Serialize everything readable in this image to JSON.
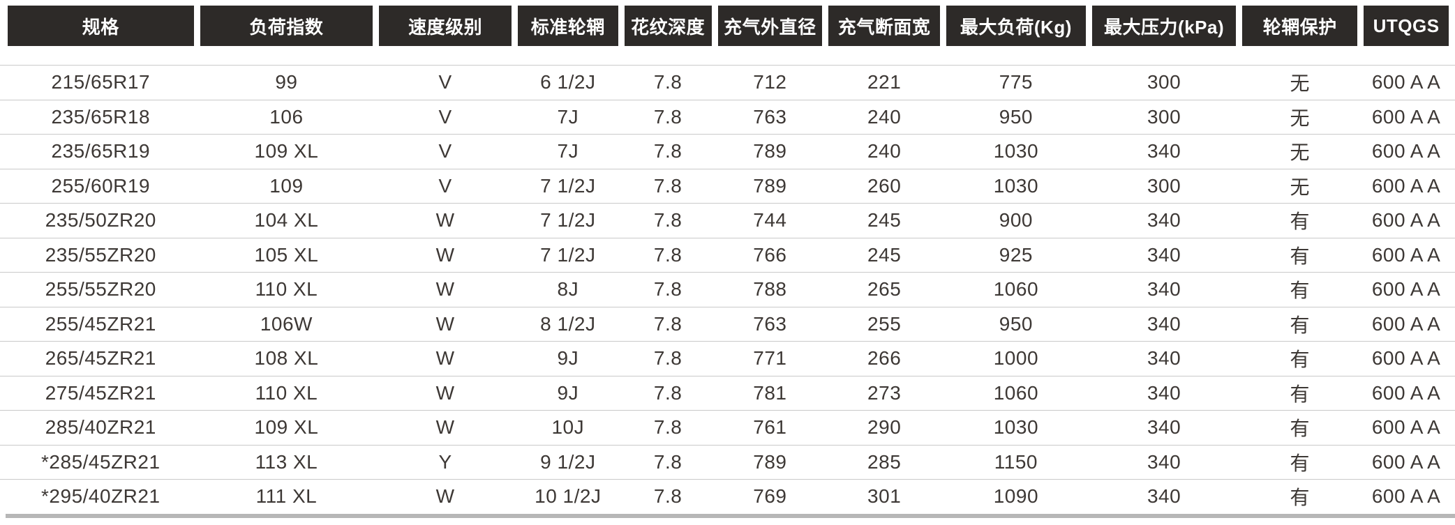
{
  "table": {
    "columns": [
      {
        "id": "spec",
        "label": "规格"
      },
      {
        "id": "load-index",
        "label": "负荷指数"
      },
      {
        "id": "speed-rating",
        "label": "速度级别"
      },
      {
        "id": "standard-rim",
        "label": "标准轮辋"
      },
      {
        "id": "tread-depth",
        "label": "花纹深度"
      },
      {
        "id": "inflated-outer-diameter",
        "label": "充气外直径"
      },
      {
        "id": "inflated-section-width",
        "label": "充气断面宽"
      },
      {
        "id": "max-load-kg",
        "label": "最大负荷(Kg)"
      },
      {
        "id": "max-pressure-kpa",
        "label": "最大压力(kPa)"
      },
      {
        "id": "rim-protection",
        "label": "轮辋保护"
      },
      {
        "id": "utqgs",
        "label": "UTQGS"
      }
    ],
    "rows": [
      [
        "215/65R17",
        "99",
        "V",
        "6 1/2J",
        "7.8",
        "712",
        "221",
        "775",
        "300",
        "无",
        "600 A A"
      ],
      [
        "235/65R18",
        "106",
        "V",
        "7J",
        "7.8",
        "763",
        "240",
        "950",
        "300",
        "无",
        "600 A A"
      ],
      [
        "235/65R19",
        "109 XL",
        "V",
        "7J",
        "7.8",
        "789",
        "240",
        "1030",
        "340",
        "无",
        "600 A A"
      ],
      [
        "255/60R19",
        "109",
        "V",
        "7 1/2J",
        "7.8",
        "789",
        "260",
        "1030",
        "300",
        "无",
        "600 A A"
      ],
      [
        "235/50ZR20",
        "104 XL",
        "W",
        "7 1/2J",
        "7.8",
        "744",
        "245",
        "900",
        "340",
        "有",
        "600 A A"
      ],
      [
        "235/55ZR20",
        "105 XL",
        "W",
        "7 1/2J",
        "7.8",
        "766",
        "245",
        "925",
        "340",
        "有",
        "600 A A"
      ],
      [
        "255/55ZR20",
        "110 XL",
        "W",
        "8J",
        "7.8",
        "788",
        "265",
        "1060",
        "340",
        "有",
        "600 A A"
      ],
      [
        "255/45ZR21",
        "106W",
        "W",
        "8 1/2J",
        "7.8",
        "763",
        "255",
        "950",
        "340",
        "有",
        "600 A A"
      ],
      [
        "265/45ZR21",
        "108 XL",
        "W",
        "9J",
        "7.8",
        "771",
        "266",
        "1000",
        "340",
        "有",
        "600 A A"
      ],
      [
        "275/45ZR21",
        "110 XL",
        "W",
        "9J",
        "7.8",
        "781",
        "273",
        "1060",
        "340",
        "有",
        "600 A A"
      ],
      [
        "285/40ZR21",
        "109 XL",
        "W",
        "10J",
        "7.8",
        "761",
        "290",
        "1030",
        "340",
        "有",
        "600 A A"
      ],
      [
        "*285/45ZR21",
        "113 XL",
        "Y",
        "9 1/2J",
        "7.8",
        "789",
        "285",
        "1150",
        "340",
        "有",
        "600 A A"
      ],
      [
        "*295/40ZR21",
        "111 XL",
        "W",
        "10 1/2J",
        "7.8",
        "769",
        "301",
        "1090",
        "340",
        "有",
        "600 A A"
      ]
    ]
  },
  "colors": {
    "header_bg": "#2d2a28",
    "header_text": "#ffffff",
    "body_text": "#3d3835",
    "row_separator": "#c9c9c9",
    "bottom_bar": "#b7b7b7"
  }
}
